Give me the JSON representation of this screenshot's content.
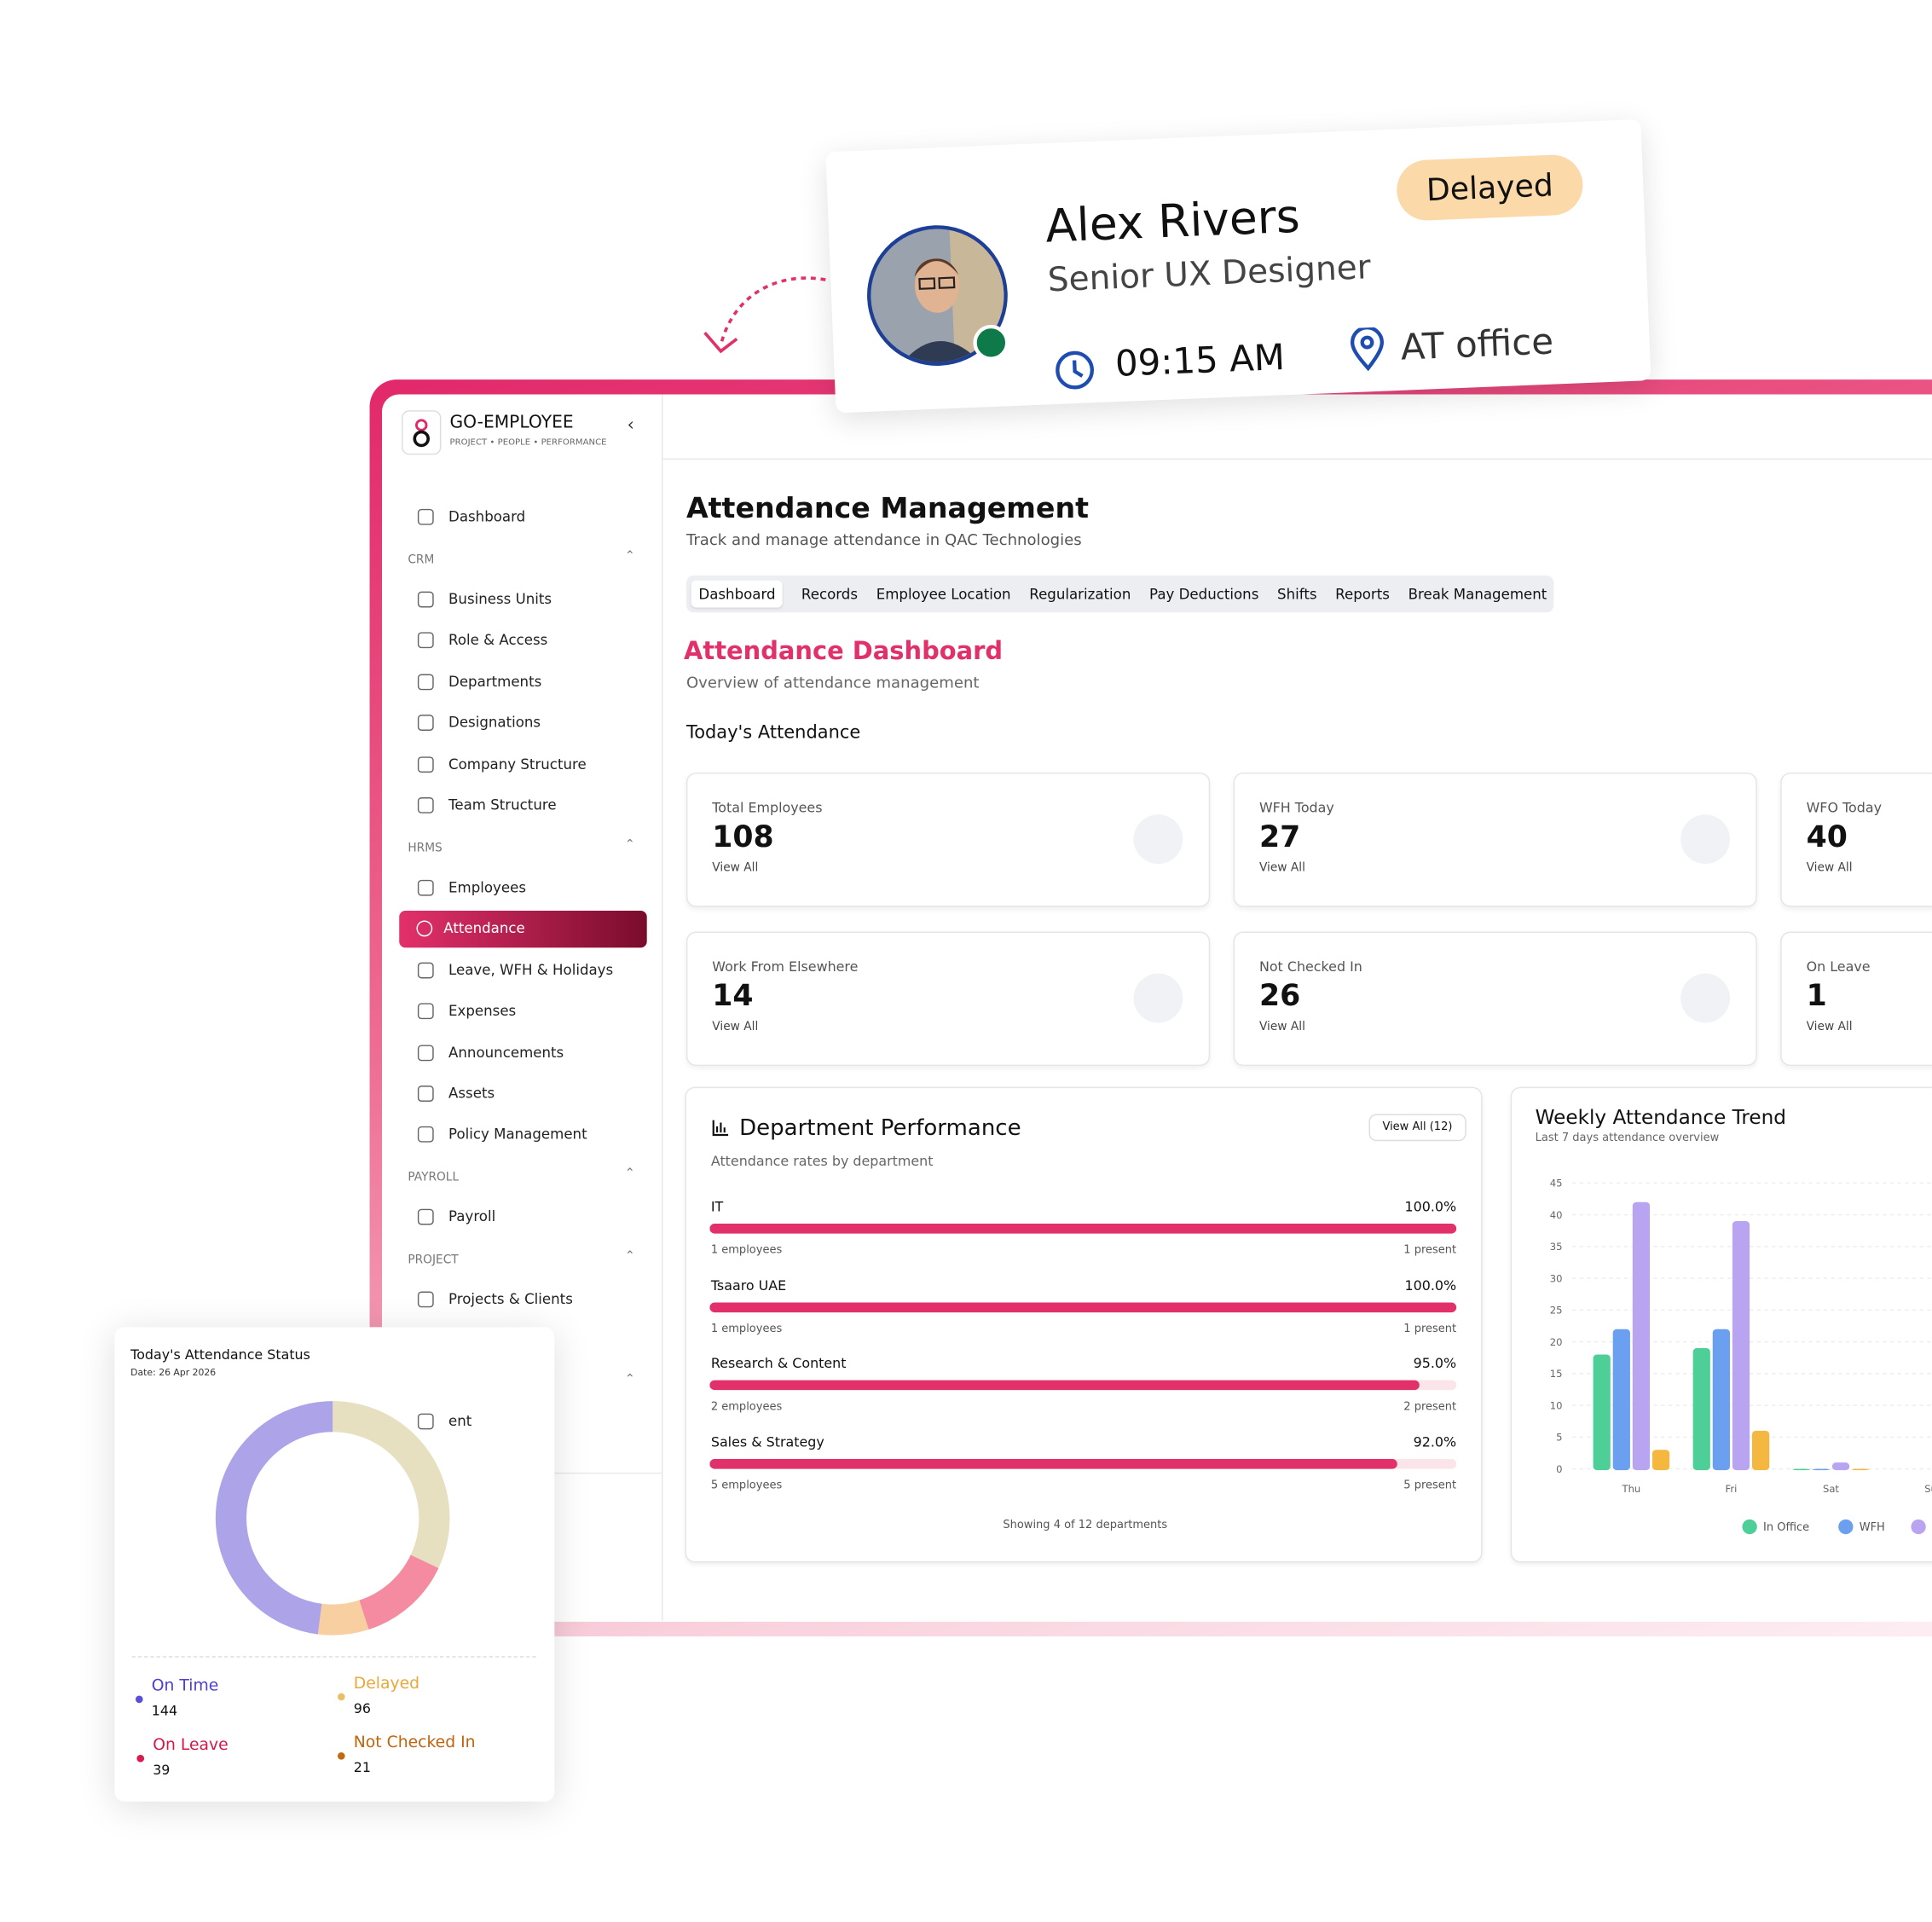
{
  "profile_card": {
    "name": "Alex Rivers",
    "role": "Senior UX Designer",
    "status": "Delayed",
    "time": "09:15 AM",
    "location": "AT office"
  },
  "sidebar": {
    "brand": "GO-EMPLOYEE",
    "tagline": "PROJECT • PEOPLE • PERFORMANCE",
    "top_item": "Dashboard",
    "sections": [
      {
        "title": "CRM",
        "items": [
          "Business Units",
          "Role & Access",
          "Departments",
          "Designations",
          "Company Structure",
          "Team Structure"
        ]
      },
      {
        "title": "HRMS",
        "items": [
          "Employees",
          "Attendance",
          "Leave, WFH & Holidays",
          "Expenses",
          "Announcements",
          "Assets",
          "Policy Management"
        ]
      },
      {
        "title": "PAYROLL",
        "items": [
          "Payroll"
        ]
      },
      {
        "title": "PROJECT",
        "items": [
          "Projects & Clients"
        ]
      },
      {
        "items": [
          "ent"
        ]
      }
    ],
    "active_item": "Attendance"
  },
  "header": {
    "title": "Attendance Management",
    "subtitle": "Track and manage attendance in QAC Technologies"
  },
  "tabs": [
    "Dashboard",
    "Records",
    "Employee Location",
    "Regularization",
    "Pay Deductions",
    "Shifts",
    "Reports",
    "Break Management"
  ],
  "dashboard": {
    "title": "Attendance Dashboard",
    "subtitle": "Overview of attendance management",
    "section": "Today's Attendance",
    "cards": [
      {
        "label": "Total Employees",
        "value": 108,
        "link": "View All"
      },
      {
        "label": "WFH Today",
        "value": 27,
        "link": "View All"
      },
      {
        "label": "WFO Today",
        "value": 40,
        "link": "View All"
      },
      {
        "label": "Work From Elsewhere",
        "value": 14,
        "link": "View All"
      },
      {
        "label": "Not Checked In",
        "value": 26,
        "link": "View All"
      },
      {
        "label": "On Leave",
        "value": 1,
        "link": "View All"
      }
    ]
  },
  "department_performance": {
    "title": "Department Performance",
    "subtitle": "Attendance rates by department",
    "button": "View All (12)",
    "xlim": [
      0,
      100
    ],
    "rows": [
      {
        "name": "IT",
        "percent": {
          "value": 100,
          "label": "100.0%"
        },
        "employees": "1 employees",
        "present": "1 present"
      },
      {
        "name": "Tsaaro UAE",
        "percent": {
          "value": 100,
          "label": "100.0%"
        },
        "employees": "1 employees",
        "present": "1 present"
      },
      {
        "name": "Research & Content",
        "percent": {
          "value": 95,
          "label": "95.0%"
        },
        "employees": "2 employees",
        "present": "2 present"
      },
      {
        "name": "Sales & Strategy",
        "percent": {
          "value": 92,
          "label": "92.0%"
        },
        "employees": "5 employees",
        "present": "5 present"
      }
    ],
    "footer": "Showing 4 of 12 departments"
  },
  "weekly_trend": {
    "type": "bar",
    "title": "Weekly Attendance Trend",
    "subtitle": "Last 7 days attendance overview",
    "categories": [
      "Thu",
      "Fri",
      "Sat",
      "Su"
    ],
    "ylim": [
      0,
      45
    ],
    "yticks": [
      0,
      5,
      10,
      15,
      20,
      25,
      30,
      35,
      40,
      45
    ],
    "grid": true,
    "series": [
      {
        "name": "In Office",
        "color": "#4fcf98",
        "values": [
          18,
          19,
          0,
          null
        ]
      },
      {
        "name": "WFH",
        "color": "#6b9ff0",
        "values": [
          22,
          22,
          0,
          null
        ]
      },
      {
        "color": "#b9a4f2",
        "values": [
          42,
          39,
          1,
          null
        ]
      },
      {
        "color": "#f4b740",
        "values": [
          3,
          6,
          0,
          null
        ]
      }
    ]
  },
  "status_chart": {
    "type": "pie",
    "title": "Today's Attendance Status",
    "date": "Date: 26 Apr 2026",
    "segments": [
      {
        "name": "Delayed",
        "value": 96,
        "color": "#e6dfc0",
        "text_color": "#e9a73b",
        "dot": "#e8c06a"
      },
      {
        "name": "On Leave",
        "value": 39,
        "color": "#f48ba0",
        "text_color": "#d6174a",
        "dot": "#d81b50"
      },
      {
        "name": "Not Checked In",
        "value": 21,
        "color": "#f8cfa0",
        "text_color": "#c2620a",
        "dot": "#c06a12"
      },
      {
        "name": "On Time",
        "value": 144,
        "color": "#ada3e8",
        "text_color": "#4b3fd6",
        "dot": "#5b4fd6"
      }
    ]
  }
}
